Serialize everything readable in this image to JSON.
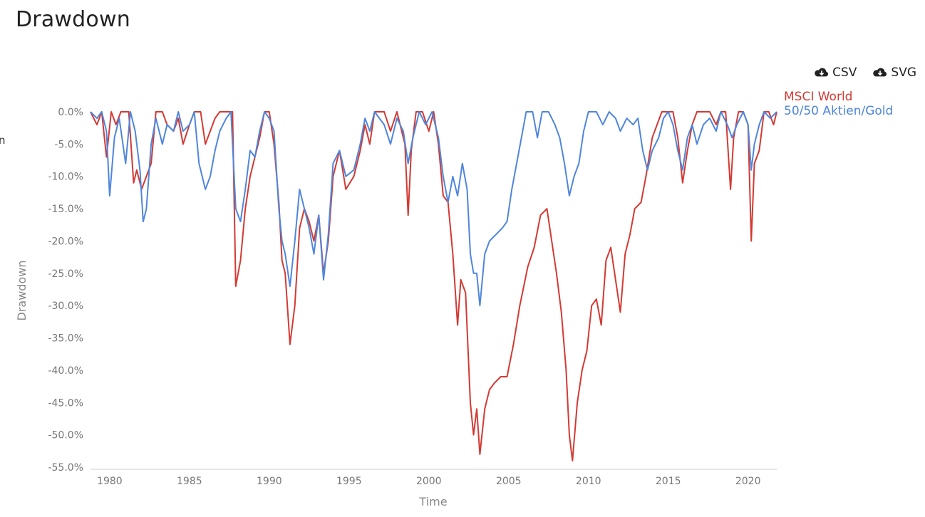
{
  "page": {
    "title": "Drawdown",
    "stray_text": "n",
    "downloads": [
      {
        "label": "CSV",
        "icon": "cloud-download-icon"
      },
      {
        "label": "SVG",
        "icon": "cloud-download-icon"
      }
    ]
  },
  "colors": {
    "msci": "#d33a33",
    "mix": "#4f86dc",
    "axis": "#cccccc",
    "tick": "#777777"
  },
  "chart_data": {
    "type": "line",
    "title": "Drawdown",
    "xlabel": "Time",
    "ylabel": "Drawdown",
    "xlim": [
      1978.8,
      2021.8
    ],
    "ylim": [
      -55,
      0
    ],
    "x_ticks": [
      1980,
      1985,
      1990,
      1995,
      2000,
      2005,
      2010,
      2015,
      2020
    ],
    "y_ticks": [
      0,
      -5,
      -10,
      -15,
      -20,
      -25,
      -30,
      -35,
      -40,
      -45,
      -50,
      -55
    ],
    "y_tick_labels": [
      "0.0%",
      "-5.0%",
      "-10.0%",
      "-15.0%",
      "-20.0%",
      "-25.0%",
      "-30.0%",
      "-35.0%",
      "-40.0%",
      "-45.0%",
      "-50.0%",
      "-55.0%"
    ],
    "grid": false,
    "legend_position": "top-right",
    "series": [
      {
        "name": "MSCI World",
        "color": "#d33a33",
        "points": [
          [
            1978.8,
            0
          ],
          [
            1979.2,
            -2
          ],
          [
            1979.5,
            0
          ],
          [
            1979.8,
            -7
          ],
          [
            1980.1,
            0
          ],
          [
            1980.4,
            -2
          ],
          [
            1980.7,
            0
          ],
          [
            1981.2,
            0
          ],
          [
            1981.5,
            -11
          ],
          [
            1981.7,
            -9
          ],
          [
            1982.0,
            -12
          ],
          [
            1982.3,
            -10
          ],
          [
            1982.6,
            -8
          ],
          [
            1982.9,
            0
          ],
          [
            1983.3,
            0
          ],
          [
            1983.6,
            -2
          ],
          [
            1984.0,
            -3
          ],
          [
            1984.3,
            -1
          ],
          [
            1984.6,
            -5
          ],
          [
            1985.0,
            -2
          ],
          [
            1985.3,
            0
          ],
          [
            1985.7,
            0
          ],
          [
            1986.0,
            -5
          ],
          [
            1986.3,
            -3
          ],
          [
            1986.6,
            -1
          ],
          [
            1986.9,
            0
          ],
          [
            1987.4,
            0
          ],
          [
            1987.7,
            0
          ],
          [
            1987.9,
            -27
          ],
          [
            1988.2,
            -23
          ],
          [
            1988.5,
            -15
          ],
          [
            1988.8,
            -10
          ],
          [
            1989.1,
            -7
          ],
          [
            1989.4,
            -4
          ],
          [
            1989.7,
            0
          ],
          [
            1990.0,
            0
          ],
          [
            1990.3,
            -5
          ],
          [
            1990.6,
            -14
          ],
          [
            1990.8,
            -23
          ],
          [
            1991.0,
            -25
          ],
          [
            1991.3,
            -36
          ],
          [
            1991.6,
            -30
          ],
          [
            1991.9,
            -18
          ],
          [
            1992.2,
            -15
          ],
          [
            1992.5,
            -17
          ],
          [
            1992.8,
            -20
          ],
          [
            1993.1,
            -16
          ],
          [
            1993.4,
            -25
          ],
          [
            1993.7,
            -20
          ],
          [
            1994.0,
            -10
          ],
          [
            1994.4,
            -6
          ],
          [
            1994.8,
            -12
          ],
          [
            1995.3,
            -10
          ],
          [
            1995.7,
            -6
          ],
          [
            1996.0,
            -2
          ],
          [
            1996.3,
            -5
          ],
          [
            1996.6,
            0
          ],
          [
            1997.2,
            0
          ],
          [
            1997.6,
            -3
          ],
          [
            1998.0,
            0
          ],
          [
            1998.5,
            -5
          ],
          [
            1998.7,
            -16
          ],
          [
            1998.9,
            -6
          ],
          [
            1999.2,
            0
          ],
          [
            1999.6,
            0
          ],
          [
            2000.0,
            -3
          ],
          [
            2000.3,
            0
          ],
          [
            2000.6,
            -5
          ],
          [
            2000.9,
            -13
          ],
          [
            2001.2,
            -14
          ],
          [
            2001.5,
            -22
          ],
          [
            2001.8,
            -33
          ],
          [
            2002.0,
            -26
          ],
          [
            2002.3,
            -28
          ],
          [
            2002.6,
            -45
          ],
          [
            2002.8,
            -50
          ],
          [
            2003.0,
            -46
          ],
          [
            2003.2,
            -53
          ],
          [
            2003.5,
            -46
          ],
          [
            2003.8,
            -43
          ],
          [
            2004.1,
            -42
          ],
          [
            2004.5,
            -41
          ],
          [
            2004.9,
            -41
          ],
          [
            2005.3,
            -36
          ],
          [
            2005.7,
            -30
          ],
          [
            2006.2,
            -24
          ],
          [
            2006.6,
            -21
          ],
          [
            2007.0,
            -16
          ],
          [
            2007.4,
            -15
          ],
          [
            2007.7,
            -20
          ],
          [
            2008.0,
            -25
          ],
          [
            2008.3,
            -31
          ],
          [
            2008.6,
            -40
          ],
          [
            2008.8,
            -50
          ],
          [
            2009.0,
            -54
          ],
          [
            2009.3,
            -45
          ],
          [
            2009.6,
            -40
          ],
          [
            2009.9,
            -37
          ],
          [
            2010.2,
            -30
          ],
          [
            2010.5,
            -29
          ],
          [
            2010.8,
            -33
          ],
          [
            2011.1,
            -23
          ],
          [
            2011.4,
            -21
          ],
          [
            2011.7,
            -26
          ],
          [
            2012.0,
            -31
          ],
          [
            2012.3,
            -22
          ],
          [
            2012.6,
            -19
          ],
          [
            2012.9,
            -15
          ],
          [
            2013.3,
            -14
          ],
          [
            2013.6,
            -10
          ],
          [
            2014.0,
            -4
          ],
          [
            2014.3,
            -2
          ],
          [
            2014.6,
            0
          ],
          [
            2015.0,
            0
          ],
          [
            2015.3,
            0
          ],
          [
            2015.6,
            -4
          ],
          [
            2015.9,
            -11
          ],
          [
            2016.2,
            -6
          ],
          [
            2016.5,
            -2
          ],
          [
            2016.8,
            0
          ],
          [
            2017.2,
            0
          ],
          [
            2017.6,
            0
          ],
          [
            2018.0,
            -2
          ],
          [
            2018.3,
            0
          ],
          [
            2018.6,
            0
          ],
          [
            2018.9,
            -12
          ],
          [
            2019.1,
            -4
          ],
          [
            2019.4,
            0
          ],
          [
            2019.7,
            0
          ],
          [
            2020.0,
            -2
          ],
          [
            2020.2,
            -20
          ],
          [
            2020.4,
            -8
          ],
          [
            2020.7,
            -6
          ],
          [
            2021.0,
            0
          ],
          [
            2021.3,
            0
          ],
          [
            2021.6,
            -2
          ],
          [
            2021.8,
            0
          ]
        ]
      },
      {
        "name": "50/50 Aktien/Gold",
        "color": "#4f86dc",
        "points": [
          [
            1978.8,
            0
          ],
          [
            1979.2,
            -1
          ],
          [
            1979.5,
            0
          ],
          [
            1979.8,
            -3
          ],
          [
            1980.0,
            -13
          ],
          [
            1980.3,
            -4
          ],
          [
            1980.6,
            -1
          ],
          [
            1981.0,
            -8
          ],
          [
            1981.3,
            0
          ],
          [
            1981.6,
            -3
          ],
          [
            1981.9,
            -9
          ],
          [
            1982.1,
            -17
          ],
          [
            1982.3,
            -15
          ],
          [
            1982.6,
            -5
          ],
          [
            1982.9,
            -1
          ],
          [
            1983.3,
            -5
          ],
          [
            1983.6,
            -2
          ],
          [
            1984.0,
            -3
          ],
          [
            1984.3,
            0
          ],
          [
            1984.6,
            -3
          ],
          [
            1985.0,
            -2
          ],
          [
            1985.3,
            0
          ],
          [
            1985.6,
            -8
          ],
          [
            1986.0,
            -12
          ],
          [
            1986.3,
            -10
          ],
          [
            1986.6,
            -6
          ],
          [
            1986.9,
            -3
          ],
          [
            1987.3,
            -1
          ],
          [
            1987.6,
            0
          ],
          [
            1987.9,
            -15
          ],
          [
            1988.2,
            -17
          ],
          [
            1988.5,
            -12
          ],
          [
            1988.8,
            -6
          ],
          [
            1989.1,
            -7
          ],
          [
            1989.4,
            -3
          ],
          [
            1989.7,
            0
          ],
          [
            1990.0,
            -1
          ],
          [
            1990.3,
            -3
          ],
          [
            1990.6,
            -15
          ],
          [
            1990.8,
            -20
          ],
          [
            1991.0,
            -22
          ],
          [
            1991.3,
            -27
          ],
          [
            1991.6,
            -20
          ],
          [
            1991.9,
            -12
          ],
          [
            1992.2,
            -15
          ],
          [
            1992.5,
            -18
          ],
          [
            1992.8,
            -22
          ],
          [
            1993.1,
            -16
          ],
          [
            1993.4,
            -26
          ],
          [
            1993.7,
            -19
          ],
          [
            1994.0,
            -8
          ],
          [
            1994.4,
            -6
          ],
          [
            1994.8,
            -10
          ],
          [
            1995.3,
            -9
          ],
          [
            1995.7,
            -5
          ],
          [
            1996.0,
            -1
          ],
          [
            1996.3,
            -3
          ],
          [
            1996.6,
            0
          ],
          [
            1997.2,
            -2
          ],
          [
            1997.6,
            -5
          ],
          [
            1998.0,
            -1
          ],
          [
            1998.4,
            -3
          ],
          [
            1998.7,
            -8
          ],
          [
            1999.0,
            -4
          ],
          [
            1999.4,
            0
          ],
          [
            1999.8,
            -2
          ],
          [
            2000.2,
            0
          ],
          [
            2000.6,
            -4
          ],
          [
            2000.9,
            -10
          ],
          [
            2001.2,
            -14
          ],
          [
            2001.5,
            -10
          ],
          [
            2001.8,
            -13
          ],
          [
            2002.1,
            -8
          ],
          [
            2002.4,
            -12
          ],
          [
            2002.6,
            -22
          ],
          [
            2002.8,
            -25
          ],
          [
            2003.0,
            -25
          ],
          [
            2003.2,
            -30
          ],
          [
            2003.5,
            -22
          ],
          [
            2003.8,
            -20
          ],
          [
            2004.2,
            -19
          ],
          [
            2004.6,
            -18
          ],
          [
            2004.9,
            -17
          ],
          [
            2005.2,
            -12
          ],
          [
            2005.5,
            -8
          ],
          [
            2005.8,
            -4
          ],
          [
            2006.1,
            0
          ],
          [
            2006.5,
            0
          ],
          [
            2006.8,
            -4
          ],
          [
            2007.1,
            0
          ],
          [
            2007.5,
            0
          ],
          [
            2007.9,
            -2
          ],
          [
            2008.2,
            -4
          ],
          [
            2008.5,
            -8
          ],
          [
            2008.8,
            -13
          ],
          [
            2009.1,
            -10
          ],
          [
            2009.4,
            -8
          ],
          [
            2009.7,
            -3
          ],
          [
            2010.0,
            0
          ],
          [
            2010.5,
            0
          ],
          [
            2010.9,
            -2
          ],
          [
            2011.3,
            0
          ],
          [
            2011.7,
            -1
          ],
          [
            2012.0,
            -3
          ],
          [
            2012.4,
            -1
          ],
          [
            2012.8,
            -2
          ],
          [
            2013.1,
            -1
          ],
          [
            2013.4,
            -6
          ],
          [
            2013.7,
            -9
          ],
          [
            2014.0,
            -6
          ],
          [
            2014.4,
            -4
          ],
          [
            2014.7,
            -1
          ],
          [
            2015.0,
            0
          ],
          [
            2015.3,
            -2
          ],
          [
            2015.6,
            -6
          ],
          [
            2015.9,
            -9
          ],
          [
            2016.2,
            -4
          ],
          [
            2016.5,
            -2
          ],
          [
            2016.8,
            -5
          ],
          [
            2017.2,
            -2
          ],
          [
            2017.6,
            -1
          ],
          [
            2018.0,
            -3
          ],
          [
            2018.3,
            0
          ],
          [
            2018.7,
            -2
          ],
          [
            2019.0,
            -4
          ],
          [
            2019.3,
            -2
          ],
          [
            2019.7,
            0
          ],
          [
            2020.0,
            -2
          ],
          [
            2020.2,
            -9
          ],
          [
            2020.4,
            -5
          ],
          [
            2020.7,
            -2
          ],
          [
            2021.0,
            0
          ],
          [
            2021.4,
            -1
          ],
          [
            2021.8,
            0
          ]
        ]
      }
    ]
  }
}
